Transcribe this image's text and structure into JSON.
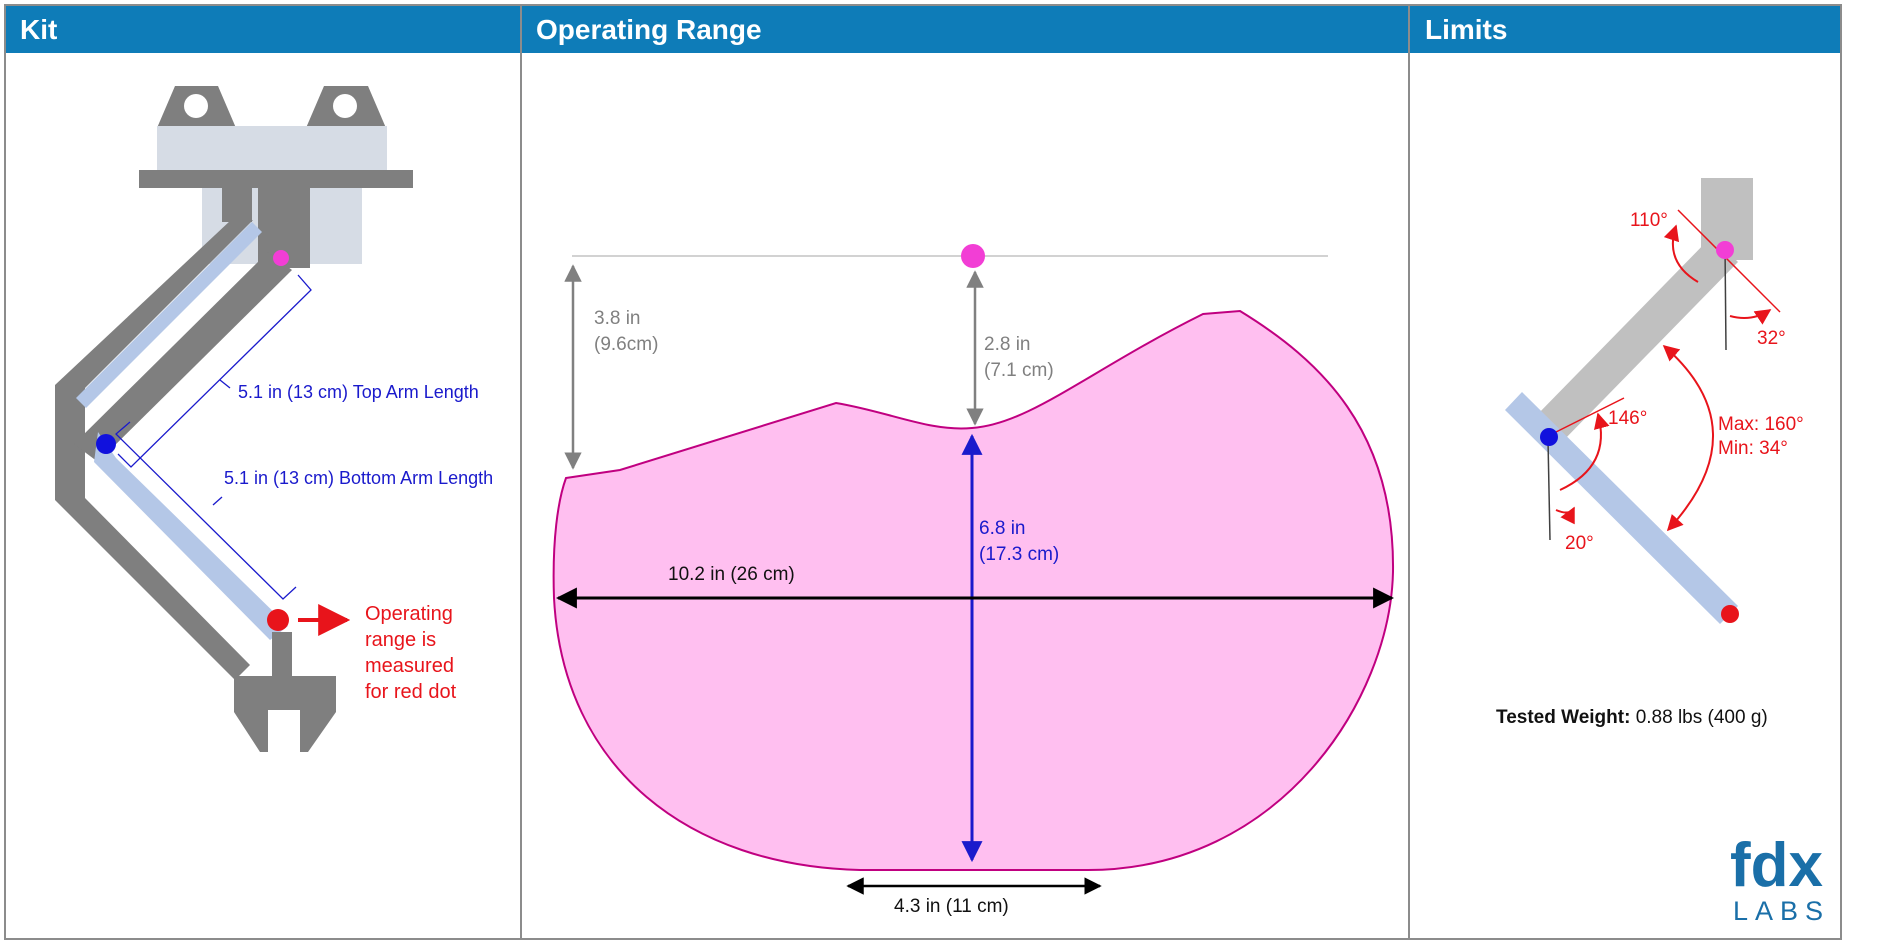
{
  "headers": {
    "kit": "Kit",
    "operating_range": "Operating Range",
    "limits": "Limits"
  },
  "kit": {
    "top_arm_label": "5.1 in (13 cm) Top Arm Length",
    "bottom_arm_label": "5.1 in (13 cm) Bottom Arm Length",
    "note_lines": [
      "Operating",
      "range is",
      "measured",
      "for red dot"
    ]
  },
  "range": {
    "left_height_lines": [
      "3.8 in",
      "(9.6cm)"
    ],
    "top_gap_lines": [
      "2.8 in",
      "(7.1 cm)"
    ],
    "height_lines": [
      "6.8 in",
      "(17.3 cm)"
    ],
    "width_label": "10.2 in (26 cm)",
    "bottom_width_label": "4.3 in (11 cm)"
  },
  "limits": {
    "angle_110": "110°",
    "angle_32": "32°",
    "angle_146": "146°",
    "angle_20": "20°",
    "max_label": "Max: 160°",
    "min_label": "Min: 34°",
    "tested_weight_label": "Tested Weight:",
    "tested_weight_value": " 0.88 lbs (400 g)"
  },
  "logo": {
    "top": "fdx",
    "bottom": "LABS"
  },
  "colors": {
    "header_bg": "#0e7cb8",
    "border": "#8c8c8c",
    "arm_gray": "#7f7f7f",
    "arm_light_blue": "#b4c7e7",
    "range_fill": "#ffbff0",
    "range_stroke": "#c00080",
    "pink_dot": "#f23ed5",
    "blue_dot": "#1111dd",
    "red_dot": "#e8141b"
  }
}
